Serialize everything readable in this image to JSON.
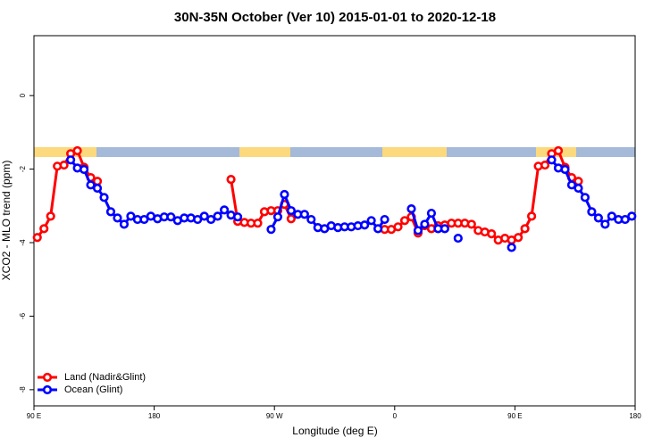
{
  "chart_data": {
    "type": "line",
    "title": "30N-35N October (Ver 10)   2015-01-01 to 2020-12-18",
    "x_label": "Longitude (deg E)",
    "y_label": "XCO2 - MLO trend (ppm)",
    "xlim": [
      90,
      540
    ],
    "ylim": [
      -8.44,
      1.63
    ],
    "xticks": [
      {
        "value": 90,
        "label": "90 E"
      },
      180,
      {
        "value": 270,
        "label": "90 W"
      },
      {
        "value": 360,
        "label": "0"
      },
      {
        "value": 450,
        "label": "90 E"
      },
      {
        "value": 540,
        "label": "180"
      }
    ],
    "yticks": [
      0,
      -2,
      -4,
      -6,
      -8
    ],
    "legend": "bottomleft",
    "x": [
      92.5,
      97.5,
      102.5,
      107.5,
      112.5,
      117.5,
      122.5,
      127.5,
      132.5,
      137.5,
      142.5,
      147.5,
      152.5,
      157.5,
      162.5,
      167.5,
      172.5,
      177.5,
      182.5,
      187.5,
      192.5,
      197.5,
      202.5,
      207.5,
      212.5,
      217.5,
      222.5,
      227.5,
      232.5,
      237.5,
      242.5,
      247.5,
      252.5,
      257.5,
      262.5,
      267.5,
      272.5,
      277.5,
      282.5,
      287.5,
      292.5,
      297.5,
      302.5,
      307.5,
      312.5,
      317.5,
      322.5,
      327.5,
      332.5,
      337.5,
      342.5,
      347.5,
      352.5,
      357.5,
      362.5,
      367.5,
      372.5,
      377.5,
      382.5,
      387.5,
      392.5,
      397.5,
      402.5,
      407.5,
      412.5,
      417.5,
      422.5,
      427.5,
      432.5,
      437.5,
      442.5,
      447.5,
      452.5,
      457.5,
      462.5,
      467.5,
      472.5,
      477.5,
      482.5,
      487.5,
      492.5,
      497.5,
      502.5,
      507.5,
      512.5,
      517.5,
      522.5,
      527.5,
      532.5,
      537.5
    ],
    "series": [
      {
        "name": "Land (Nadir&Glint)",
        "color": "#ff0000",
        "values": [
          -3.86,
          -3.62,
          -3.28,
          -1.92,
          -1.89,
          -1.58,
          -1.5,
          -1.95,
          -2.23,
          -2.33,
          null,
          null,
          null,
          null,
          null,
          null,
          null,
          null,
          null,
          null,
          null,
          null,
          null,
          null,
          null,
          null,
          null,
          null,
          null,
          -2.28,
          -3.42,
          -3.45,
          -3.47,
          -3.47,
          -3.16,
          -3.13,
          -3.13,
          -2.96,
          -3.35,
          null,
          null,
          null,
          null,
          null,
          null,
          null,
          null,
          null,
          null,
          null,
          null,
          null,
          -3.64,
          -3.64,
          -3.57,
          -3.4,
          -3.3,
          -3.74,
          -3.54,
          -3.62,
          -3.54,
          -3.52,
          -3.47,
          -3.47,
          -3.47,
          -3.5,
          -3.67,
          -3.71,
          -3.76,
          -3.93,
          -3.88,
          -3.93,
          -3.86,
          -3.62,
          -3.28,
          -1.92,
          -1.89,
          -1.58,
          -1.5,
          -1.95,
          -2.23,
          -2.33,
          null,
          null,
          null,
          null,
          null,
          null,
          null,
          null
        ]
      },
      {
        "name": "Ocean (Glint)",
        "color": "#0000ff",
        "values": [
          null,
          null,
          null,
          null,
          null,
          -1.75,
          -1.97,
          -2.01,
          -2.43,
          -2.52,
          -2.77,
          -3.16,
          -3.33,
          -3.5,
          -3.28,
          -3.37,
          -3.37,
          -3.28,
          -3.35,
          -3.3,
          -3.3,
          -3.4,
          -3.33,
          -3.33,
          -3.37,
          -3.28,
          -3.37,
          -3.28,
          -3.11,
          -3.25,
          -3.3,
          null,
          null,
          null,
          null,
          -3.64,
          -3.3,
          -2.69,
          -3.13,
          -3.23,
          -3.23,
          -3.37,
          -3.59,
          -3.62,
          -3.54,
          -3.59,
          -3.57,
          -3.57,
          -3.54,
          -3.52,
          -3.4,
          -3.62,
          -3.37,
          null,
          null,
          null,
          -3.08,
          -3.67,
          -3.5,
          -3.2,
          -3.62,
          -3.62,
          null,
          -3.88,
          null,
          null,
          null,
          null,
          null,
          null,
          null,
          -4.13,
          null,
          null,
          null,
          null,
          null,
          -1.75,
          -1.97,
          -2.01,
          -2.43,
          -2.52,
          -2.77,
          -3.16,
          -3.33,
          -3.5,
          -3.28,
          -3.37,
          -3.37,
          -3.28
        ]
      }
    ]
  }
}
